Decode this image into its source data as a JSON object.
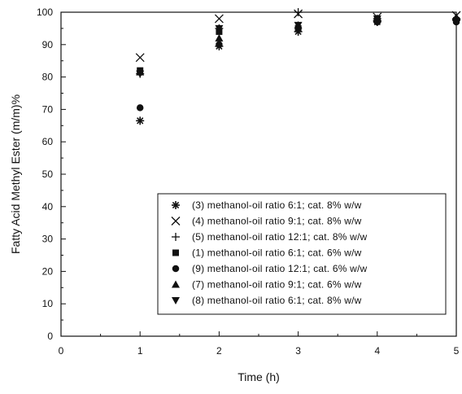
{
  "chart_data": {
    "type": "scatter",
    "title": "",
    "xlabel": "Time (h)",
    "ylabel": "Fatty Acid Methyl Ester (m/m)%",
    "xlim": [
      0,
      5
    ],
    "ylim": [
      0,
      100
    ],
    "xticks": [
      "0",
      "1",
      "2",
      "3",
      "4",
      "5"
    ],
    "yticks": [
      "0",
      "10",
      "20",
      "30",
      "40",
      "50",
      "60",
      "70",
      "80",
      "90",
      "100"
    ],
    "grid": false,
    "legend_position": "bottom-right",
    "series": [
      {
        "name": "(3) methanol-oil ratio 6:1; cat. 8% w/w",
        "marker": "asterisk",
        "x": [
          1,
          2,
          3,
          4,
          5
        ],
        "y": [
          66.5,
          89.5,
          94,
          97,
          97.5
        ]
      },
      {
        "name": "(4) methanol-oil ratio 9:1; cat. 8% w/w",
        "marker": "x",
        "x": [
          1,
          2,
          3,
          4,
          5
        ],
        "y": [
          86,
          98,
          99.5,
          98.5,
          99
        ]
      },
      {
        "name": "(5) methanol-oil ratio 12:1; cat. 8% w/w",
        "marker": "plus",
        "x": [
          1,
          2,
          3,
          4,
          5
        ],
        "y": [
          81,
          95,
          100,
          98,
          98
        ]
      },
      {
        "name": "(1) methanol-oil ratio 6:1; cat. 6% w/w",
        "marker": "square",
        "x": [
          1,
          2,
          3,
          4,
          5
        ],
        "y": [
          82,
          94,
          95,
          97.5,
          97.5
        ]
      },
      {
        "name": "(9) methanol-oil ratio 12:1; cat. 6% w/w",
        "marker": "circle",
        "x": [
          1,
          2,
          3,
          4,
          5
        ],
        "y": [
          70.5,
          90,
          95,
          97,
          97
        ]
      },
      {
        "name": "(7) methanol-oil ratio 9:1; cat. 6% w/w",
        "marker": "triangle-up",
        "x": [
          1,
          2,
          3,
          4,
          5
        ],
        "y": [
          81.5,
          92,
          96,
          98,
          98.5
        ]
      },
      {
        "name": "(8) methanol-oil ratio 6:1; cat. 8% w/w",
        "marker": "triangle-down",
        "x": [
          1,
          2,
          3,
          4,
          5
        ],
        "y": [
          81,
          95,
          96,
          98,
          97
        ]
      }
    ]
  }
}
